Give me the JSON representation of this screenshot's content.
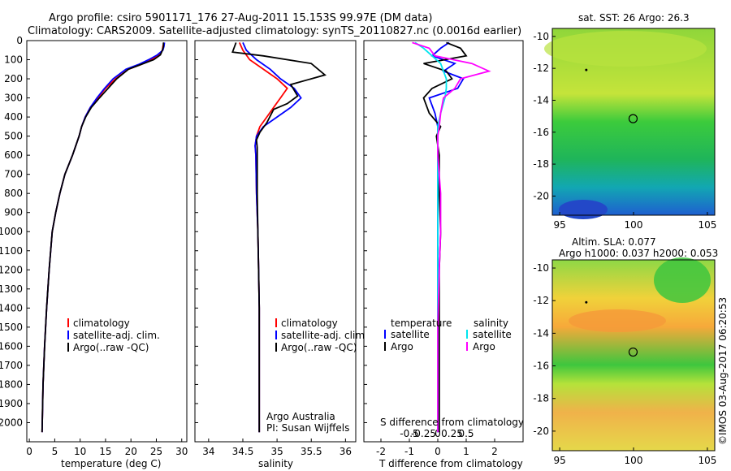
{
  "header": {
    "line1": "Argo profile: csiro 5901171_176 27-Aug-2011 15.153S 99.97E (DM data)",
    "line2": "Climatology: CARS2009. Satellite-adjusted climatology: synTS_20110827.nc (0.0016d earlier)"
  },
  "colors": {
    "clim": "#ff0000",
    "sat": "#0000ff",
    "argo": "#000000",
    "sat_s": "#00e5ee",
    "argo_s": "#ff00ff"
  },
  "chart_data": [
    {
      "id": "temperature",
      "type": "line",
      "xlabel": "temperature (deg C)",
      "ylabel": "",
      "xlim": [
        -0.5,
        31
      ],
      "ylim": [
        2100,
        0
      ],
      "xticks": [
        0,
        5,
        10,
        15,
        20,
        25,
        30
      ],
      "yticks": [
        0,
        100,
        200,
        300,
        400,
        500,
        600,
        700,
        800,
        900,
        1000,
        1100,
        1200,
        1300,
        1400,
        1500,
        1600,
        1700,
        1800,
        1900,
        2000
      ],
      "legend": [
        "climatology",
        "satellite-adj. clim.",
        "Argo(..raw -QC)"
      ],
      "series": [
        {
          "name": "climatology",
          "color": "clim",
          "x": [
            26.5,
            26.3,
            26.2,
            25.5,
            24,
            22,
            19.5,
            17,
            15,
            13.5,
            12,
            11,
            10.3,
            9.8,
            8.5,
            7,
            6,
            5.2,
            4.5,
            3.9,
            3.4,
            3.0,
            2.7,
            2.5
          ],
          "y": [
            10,
            30,
            50,
            75,
            100,
            125,
            150,
            200,
            250,
            300,
            350,
            400,
            450,
            500,
            600,
            700,
            800,
            900,
            1000,
            1200,
            1400,
            1600,
            1800,
            2050
          ]
        },
        {
          "name": "satellite",
          "color": "sat",
          "x": [
            26.6,
            26.5,
            26.3,
            25.2,
            23.5,
            21.5,
            19,
            16.5,
            14.8,
            13.3,
            12,
            11,
            10.3,
            9.8,
            8.5,
            7,
            6,
            5.2,
            4.5,
            3.9,
            3.4,
            3.0,
            2.7,
            2.5
          ],
          "y": [
            10,
            30,
            50,
            75,
            100,
            125,
            150,
            200,
            250,
            300,
            350,
            400,
            450,
            500,
            600,
            700,
            800,
            900,
            1000,
            1200,
            1400,
            1600,
            1800,
            2050
          ]
        },
        {
          "name": "argo",
          "color": "argo",
          "x": [
            26.4,
            26.4,
            26.2,
            25.8,
            24.5,
            22,
            19.5,
            17.2,
            15.5,
            13.8,
            12.2,
            11.1,
            10.3,
            9.8,
            8.5,
            7,
            6,
            5.2,
            4.5,
            3.9,
            3.4,
            3.0,
            2.7,
            2.5
          ],
          "y": [
            10,
            30,
            50,
            75,
            100,
            125,
            150,
            200,
            250,
            300,
            350,
            400,
            450,
            500,
            600,
            700,
            800,
            900,
            1000,
            1200,
            1400,
            1600,
            1800,
            2050
          ]
        }
      ]
    },
    {
      "id": "salinity",
      "type": "line",
      "xlabel": "salinity",
      "ylabel": "",
      "xlim": [
        33.8,
        36.15
      ],
      "ylim": [
        2100,
        0
      ],
      "xticks": [
        34,
        34.5,
        35,
        35.5,
        36
      ],
      "legend": [
        "climatology",
        "satellite-adj. clim.",
        "Argo(..raw -QC)"
      ],
      "note": [
        "Argo Australia",
        "PI: Susan Wijffels"
      ],
      "series": [
        {
          "name": "climatology",
          "color": "clim",
          "x": [
            34.45,
            34.5,
            34.6,
            34.8,
            35.0,
            35.15,
            35.05,
            34.95,
            34.85,
            34.75,
            34.7,
            34.68,
            34.69,
            34.7,
            34.72,
            34.73,
            34.74,
            34.74,
            34.74,
            34.74,
            34.74
          ],
          "y": [
            10,
            50,
            100,
            150,
            200,
            250,
            300,
            350,
            400,
            450,
            500,
            550,
            600,
            800,
            1000,
            1200,
            1400,
            1600,
            1800,
            1950,
            2050
          ]
        },
        {
          "name": "satellite",
          "color": "sat",
          "x": [
            34.5,
            34.55,
            34.7,
            34.9,
            35.05,
            35.25,
            35.35,
            35.2,
            35.0,
            34.8,
            34.7,
            34.68,
            34.69,
            34.7,
            34.72,
            34.73,
            34.74,
            34.74,
            34.74,
            34.74,
            34.74
          ],
          "y": [
            10,
            50,
            100,
            150,
            200,
            250,
            300,
            350,
            400,
            450,
            500,
            550,
            600,
            800,
            1000,
            1200,
            1400,
            1600,
            1800,
            1950,
            2050
          ]
        },
        {
          "name": "argo",
          "color": "argo",
          "x": [
            34.4,
            34.35,
            34.8,
            35.5,
            35.7,
            35.2,
            35.3,
            35.15,
            34.95,
            34.85,
            34.75,
            34.7,
            34.71,
            34.71,
            34.72,
            34.73,
            34.74,
            34.74,
            34.74,
            34.74,
            34.74
          ],
          "y": [
            10,
            60,
            80,
            120,
            180,
            230,
            290,
            330,
            360,
            430,
            480,
            520,
            560,
            800,
            1000,
            1200,
            1400,
            1600,
            1800,
            1950,
            2050
          ]
        }
      ]
    },
    {
      "id": "difference",
      "type": "line",
      "xlabel": "T difference from climatology",
      "xlabel2": "S difference from climatology",
      "xlim": [
        -2.6,
        3.0
      ],
      "ylim": [
        2100,
        0
      ],
      "xticks": [
        -2,
        -1,
        0,
        1,
        2
      ],
      "xticks_s": [
        -0.5,
        -0.25,
        0,
        0.25,
        0.5
      ],
      "legend_t_title": "temperature",
      "legend_s_title": "salinity",
      "legend": [
        "satellite",
        "Argo",
        "satellite",
        "Argo"
      ],
      "series": [
        {
          "name": "T satellite",
          "color": "sat",
          "x": [
            0.4,
            0.1,
            -0.2,
            0.6,
            0.2,
            0.9,
            0.7,
            -0.3,
            -0.1,
            0,
            0,
            0,
            0,
            0,
            0,
            0,
            0,
            0
          ],
          "y": [
            10,
            40,
            80,
            120,
            160,
            200,
            250,
            300,
            380,
            450,
            500,
            600,
            800,
            1000,
            1200,
            1500,
            1800,
            2050
          ]
        },
        {
          "name": "T Argo",
          "color": "argo",
          "x": [
            0.3,
            0.8,
            1.0,
            -0.5,
            0.3,
            0.5,
            -0.2,
            -0.5,
            -0.3,
            0.1,
            -0.05,
            0.05,
            0.05,
            0.1,
            0.05,
            0.05,
            0.05,
            0.05
          ],
          "y": [
            10,
            40,
            80,
            120,
            160,
            200,
            250,
            300,
            380,
            450,
            500,
            600,
            800,
            1000,
            1200,
            1500,
            1800,
            2050
          ]
        },
        {
          "name": "S satellite",
          "color": "sat_s",
          "x": [
            -0.8,
            -0.5,
            -0.2,
            0.1,
            0.2,
            0.3,
            0.3,
            0.25,
            0.1,
            0,
            0,
            0,
            0,
            0,
            0,
            0,
            0,
            0
          ],
          "y": [
            10,
            40,
            80,
            120,
            160,
            200,
            250,
            300,
            380,
            450,
            500,
            600,
            800,
            1000,
            1200,
            1500,
            1800,
            2050
          ]
        },
        {
          "name": "S Argo",
          "color": "argo_s",
          "x": [
            -0.9,
            -0.3,
            -0.1,
            1.2,
            1.8,
            0.8,
            0.6,
            0.2,
            0.1,
            0.05,
            0,
            0,
            0.1,
            0.1,
            0.05,
            0,
            0,
            0
          ],
          "y": [
            10,
            40,
            80,
            120,
            160,
            200,
            250,
            300,
            380,
            450,
            500,
            600,
            800,
            1000,
            1200,
            1500,
            1800,
            2050
          ]
        }
      ]
    },
    {
      "id": "sst_map",
      "type": "heatmap",
      "title": "sat. SST: 26 Argo: 26.3",
      "xlim": [
        94.5,
        105.5
      ],
      "ylim": [
        -21.2,
        -9.5
      ],
      "xticks": [
        95,
        100,
        105
      ],
      "yticks": [
        -10,
        -12,
        -14,
        -16,
        -18,
        -20
      ],
      "profile": {
        "lon": 99.97,
        "lat": -15.153
      },
      "track": {
        "lon": 96.8,
        "lat": -12.1
      }
    },
    {
      "id": "sla_map",
      "type": "heatmap",
      "title": "Altim. SLA: 0.077",
      "subtitle": "Argo h1000: 0.037 h2000: 0.053",
      "xlim": [
        94.5,
        105.5
      ],
      "ylim": [
        -21.2,
        -9.5
      ],
      "xticks": [
        95,
        100,
        105
      ],
      "yticks": [
        -10,
        -12,
        -14,
        -16,
        -18,
        -20
      ],
      "profile": {
        "lon": 99.97,
        "lat": -15.153
      },
      "track": {
        "lon": 96.8,
        "lat": -12.1
      }
    }
  ],
  "credit": "©IMOS 03-Aug-2017 06:20:53"
}
